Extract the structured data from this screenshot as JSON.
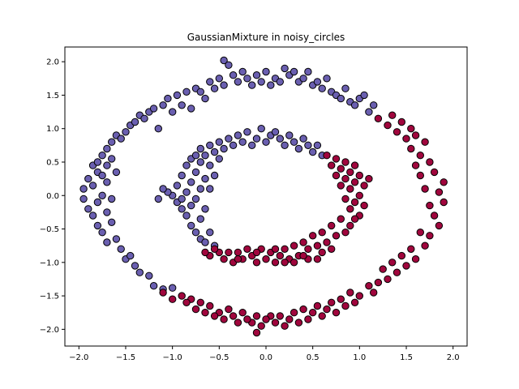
{
  "chart_data": {
    "type": "scatter",
    "title": "GaussianMixture in noisy_circles",
    "xlabel": "",
    "ylabel": "",
    "xlim": [
      -2.15,
      2.15
    ],
    "ylim": [
      -2.25,
      2.22
    ],
    "xticks": [
      -2.0,
      -1.5,
      -1.0,
      -0.5,
      0.0,
      0.5,
      1.0,
      1.5,
      2.0
    ],
    "xtick_labels": [
      "−2.0",
      "−1.5",
      "−1.0",
      "−0.5",
      "0.0",
      "0.5",
      "1.0",
      "1.5",
      "2.0"
    ],
    "yticks": [
      2.0,
      1.5,
      1.0,
      0.5,
      0.0,
      -0.5,
      -1.0,
      -1.5,
      -2.0
    ],
    "ytick_labels": [
      "2.0",
      "1.5",
      "1.0",
      "0.5",
      "0.0",
      "−0.5",
      "−1.0",
      "−1.5",
      "−2.0"
    ],
    "grid": false,
    "series": [
      {
        "color": "#6a5fb0",
        "points": [
          [
            -1.95,
            0.1
          ],
          [
            -1.95,
            -0.05
          ],
          [
            -1.9,
            0.25
          ],
          [
            -1.9,
            -0.2
          ],
          [
            -1.85,
            0.45
          ],
          [
            -1.85,
            0.15
          ],
          [
            -1.85,
            -0.3
          ],
          [
            -1.8,
            0.5
          ],
          [
            -1.8,
            0.35
          ],
          [
            -1.8,
            -0.1
          ],
          [
            -1.8,
            -0.45
          ],
          [
            -1.75,
            0.6
          ],
          [
            -1.75,
            0.3
          ],
          [
            -1.75,
            0.0
          ],
          [
            -1.75,
            -0.55
          ],
          [
            -1.7,
            0.7
          ],
          [
            -1.7,
            0.45
          ],
          [
            -1.7,
            0.2
          ],
          [
            -1.7,
            -0.25
          ],
          [
            -1.7,
            -0.7
          ],
          [
            -1.65,
            0.8
          ],
          [
            -1.65,
            0.55
          ],
          [
            -1.65,
            -0.05
          ],
          [
            -1.65,
            -0.4
          ],
          [
            -1.6,
            0.9
          ],
          [
            -1.6,
            0.35
          ],
          [
            -1.6,
            -0.65
          ],
          [
            -1.55,
            0.85
          ],
          [
            -1.55,
            -0.8
          ],
          [
            -1.5,
            0.95
          ],
          [
            -1.5,
            -0.95
          ],
          [
            -1.45,
            1.05
          ],
          [
            -1.45,
            -0.9
          ],
          [
            -1.4,
            1.1
          ],
          [
            -1.4,
            -1.05
          ],
          [
            -1.35,
            1.2
          ],
          [
            -1.35,
            -1.15
          ],
          [
            -1.3,
            1.15
          ],
          [
            -1.25,
            1.25
          ],
          [
            -1.25,
            -1.2
          ],
          [
            -1.2,
            1.3
          ],
          [
            -1.2,
            -1.35
          ],
          [
            -1.15,
            1.0
          ],
          [
            -1.1,
            1.35
          ],
          [
            -1.1,
            -1.4
          ],
          [
            -1.05,
            1.45
          ],
          [
            -1.0,
            1.25
          ],
          [
            -1.0,
            -1.38
          ],
          [
            -0.95,
            1.5
          ],
          [
            -0.9,
            1.35
          ],
          [
            -0.85,
            1.55
          ],
          [
            -0.8,
            1.3
          ],
          [
            -0.75,
            1.6
          ],
          [
            -0.7,
            1.55
          ],
          [
            -0.65,
            1.45
          ],
          [
            -0.6,
            1.7
          ],
          [
            -0.55,
            1.6
          ],
          [
            -0.5,
            1.75
          ],
          [
            -0.45,
            2.02
          ],
          [
            -0.45,
            1.65
          ],
          [
            -0.4,
            1.95
          ],
          [
            -0.35,
            1.8
          ],
          [
            -0.3,
            1.7
          ],
          [
            -0.25,
            1.85
          ],
          [
            -0.2,
            1.75
          ],
          [
            -0.15,
            1.65
          ],
          [
            -0.1,
            1.8
          ],
          [
            -0.05,
            1.7
          ],
          [
            0.0,
            1.85
          ],
          [
            0.05,
            1.65
          ],
          [
            0.1,
            1.75
          ],
          [
            0.15,
            1.7
          ],
          [
            0.2,
            1.9
          ],
          [
            0.25,
            1.8
          ],
          [
            0.3,
            1.85
          ],
          [
            0.35,
            1.7
          ],
          [
            0.4,
            1.75
          ],
          [
            0.45,
            1.85
          ],
          [
            0.5,
            1.65
          ],
          [
            0.55,
            1.7
          ],
          [
            0.6,
            1.6
          ],
          [
            0.65,
            1.75
          ],
          [
            0.7,
            1.55
          ],
          [
            0.75,
            1.5
          ],
          [
            0.8,
            1.45
          ],
          [
            0.85,
            1.6
          ],
          [
            0.9,
            1.4
          ],
          [
            0.95,
            1.35
          ],
          [
            1.0,
            1.45
          ],
          [
            1.05,
            1.5
          ],
          [
            1.1,
            1.25
          ],
          [
            1.15,
            1.35
          ],
          [
            -1.0,
            0.0
          ],
          [
            -0.95,
            0.15
          ],
          [
            -0.95,
            -0.1
          ],
          [
            -0.9,
            0.3
          ],
          [
            -0.9,
            -0.2
          ],
          [
            -0.85,
            0.45
          ],
          [
            -0.85,
            0.05
          ],
          [
            -0.85,
            -0.3
          ],
          [
            -0.8,
            0.55
          ],
          [
            -0.8,
            0.2
          ],
          [
            -0.8,
            -0.15
          ],
          [
            -0.8,
            -0.45
          ],
          [
            -0.75,
            0.6
          ],
          [
            -0.75,
            0.35
          ],
          [
            -0.75,
            -0.05
          ],
          [
            -0.75,
            -0.55
          ],
          [
            -0.7,
            0.7
          ],
          [
            -0.7,
            0.5
          ],
          [
            -0.7,
            0.1
          ],
          [
            -0.7,
            -0.35
          ],
          [
            -0.7,
            -0.65
          ],
          [
            -0.65,
            0.6
          ],
          [
            -0.65,
            -0.2
          ],
          [
            -0.65,
            -0.7
          ],
          [
            -0.6,
            0.75
          ],
          [
            -0.6,
            0.45
          ],
          [
            -0.6,
            -0.55
          ],
          [
            -0.55,
            0.65
          ],
          [
            -0.55,
            -0.75
          ],
          [
            -0.5,
            0.8
          ],
          [
            -0.5,
            0.55
          ],
          [
            -0.45,
            0.7
          ],
          [
            -0.4,
            0.85
          ],
          [
            -0.35,
            0.75
          ],
          [
            -0.3,
            0.9
          ],
          [
            -0.25,
            0.8
          ],
          [
            -0.2,
            0.95
          ],
          [
            -0.15,
            0.75
          ],
          [
            -0.1,
            0.85
          ],
          [
            -0.05,
            1.0
          ],
          [
            0.0,
            0.8
          ],
          [
            0.05,
            0.9
          ],
          [
            0.1,
            0.95
          ],
          [
            0.15,
            0.85
          ],
          [
            0.2,
            0.75
          ],
          [
            0.25,
            0.9
          ],
          [
            0.3,
            0.8
          ],
          [
            0.35,
            0.7
          ],
          [
            0.4,
            0.85
          ],
          [
            0.45,
            0.75
          ],
          [
            0.5,
            0.65
          ],
          [
            0.55,
            0.75
          ],
          [
            0.6,
            0.6
          ],
          [
            -1.15,
            -0.05
          ],
          [
            -1.05,
            0.05
          ],
          [
            -1.1,
            0.1
          ],
          [
            -0.9,
            -0.05
          ],
          [
            -0.65,
            0.25
          ],
          [
            -0.6,
            0.1
          ],
          [
            -0.55,
            0.3
          ]
        ]
      },
      {
        "color": "#a0063d",
        "points": [
          [
            1.2,
            1.15
          ],
          [
            1.3,
            1.05
          ],
          [
            1.35,
            1.2
          ],
          [
            1.4,
            0.95
          ],
          [
            1.45,
            1.1
          ],
          [
            1.5,
            0.85
          ],
          [
            1.55,
            1.0
          ],
          [
            1.55,
            0.7
          ],
          [
            1.6,
            0.9
          ],
          [
            1.6,
            0.45
          ],
          [
            1.65,
            0.6
          ],
          [
            1.65,
            0.3
          ],
          [
            1.7,
            0.8
          ],
          [
            1.7,
            0.1
          ],
          [
            1.75,
            0.5
          ],
          [
            1.75,
            -0.15
          ],
          [
            1.8,
            0.35
          ],
          [
            1.8,
            -0.3
          ],
          [
            1.85,
            0.05
          ],
          [
            1.85,
            -0.45
          ],
          [
            1.9,
            0.2
          ],
          [
            1.9,
            -0.1
          ],
          [
            1.75,
            -0.6
          ],
          [
            1.7,
            -0.75
          ],
          [
            1.65,
            -0.55
          ],
          [
            1.6,
            -0.95
          ],
          [
            1.55,
            -0.8
          ],
          [
            1.5,
            -1.05
          ],
          [
            1.45,
            -0.9
          ],
          [
            1.4,
            -1.15
          ],
          [
            1.35,
            -1.0
          ],
          [
            1.3,
            -1.25
          ],
          [
            1.25,
            -1.1
          ],
          [
            1.2,
            -1.3
          ],
          [
            1.15,
            -1.45
          ],
          [
            1.1,
            -1.35
          ],
          [
            1.0,
            -1.5
          ],
          [
            0.95,
            -1.6
          ],
          [
            0.9,
            -1.45
          ],
          [
            0.85,
            -1.65
          ],
          [
            0.8,
            -1.55
          ],
          [
            0.75,
            -1.75
          ],
          [
            0.7,
            -1.6
          ],
          [
            0.65,
            -1.7
          ],
          [
            0.6,
            -1.8
          ],
          [
            0.55,
            -1.65
          ],
          [
            0.5,
            -1.75
          ],
          [
            0.45,
            -1.85
          ],
          [
            0.4,
            -1.7
          ],
          [
            0.35,
            -1.9
          ],
          [
            0.3,
            -1.75
          ],
          [
            0.25,
            -1.85
          ],
          [
            0.2,
            -1.95
          ],
          [
            0.15,
            -1.8
          ],
          [
            0.1,
            -1.9
          ],
          [
            0.05,
            -1.8
          ],
          [
            0.0,
            -1.85
          ],
          [
            -0.05,
            -1.95
          ],
          [
            -0.1,
            -2.05
          ],
          [
            -0.1,
            -1.8
          ],
          [
            -0.15,
            -1.9
          ],
          [
            -0.2,
            -1.85
          ],
          [
            -0.25,
            -1.75
          ],
          [
            -0.3,
            -1.9
          ],
          [
            -0.35,
            -1.8
          ],
          [
            -0.4,
            -1.7
          ],
          [
            -0.45,
            -1.85
          ],
          [
            -0.5,
            -1.75
          ],
          [
            -0.55,
            -1.8
          ],
          [
            -0.6,
            -1.65
          ],
          [
            -0.65,
            -1.75
          ],
          [
            -0.7,
            -1.6
          ],
          [
            -0.75,
            -1.7
          ],
          [
            -0.8,
            -1.55
          ],
          [
            -0.85,
            -1.6
          ],
          [
            -0.9,
            -1.5
          ],
          [
            -1.0,
            -1.55
          ],
          [
            -1.1,
            -1.45
          ],
          [
            0.65,
            0.6
          ],
          [
            0.7,
            0.45
          ],
          [
            0.75,
            0.55
          ],
          [
            0.75,
            0.3
          ],
          [
            0.8,
            0.4
          ],
          [
            0.8,
            0.15
          ],
          [
            0.85,
            0.5
          ],
          [
            0.85,
            0.25
          ],
          [
            0.85,
            -0.05
          ],
          [
            0.9,
            0.35
          ],
          [
            0.9,
            0.1
          ],
          [
            0.9,
            -0.2
          ],
          [
            0.95,
            0.45
          ],
          [
            0.95,
            0.2
          ],
          [
            0.95,
            -0.1
          ],
          [
            1.0,
            0.3
          ],
          [
            1.0,
            0.0
          ],
          [
            1.0,
            -0.3
          ],
          [
            1.05,
            0.15
          ],
          [
            1.05,
            -0.15
          ],
          [
            1.1,
            0.25
          ],
          [
            0.95,
            -0.35
          ],
          [
            0.9,
            -0.45
          ],
          [
            0.85,
            -0.55
          ],
          [
            0.8,
            -0.35
          ],
          [
            0.75,
            -0.6
          ],
          [
            0.7,
            -0.45
          ],
          [
            0.65,
            -0.7
          ],
          [
            0.6,
            -0.55
          ],
          [
            0.55,
            -0.75
          ],
          [
            0.5,
            -0.6
          ],
          [
            0.45,
            -0.8
          ],
          [
            0.4,
            -0.7
          ],
          [
            0.35,
            -0.9
          ],
          [
            0.3,
            -0.75
          ],
          [
            0.25,
            -0.95
          ],
          [
            0.2,
            -0.8
          ],
          [
            0.15,
            -0.9
          ],
          [
            0.1,
            -1.0
          ],
          [
            0.05,
            -0.85
          ],
          [
            0.0,
            -0.95
          ],
          [
            -0.05,
            -0.8
          ],
          [
            -0.1,
            -1.0
          ],
          [
            -0.15,
            -0.9
          ],
          [
            -0.2,
            -0.8
          ],
          [
            -0.25,
            -0.95
          ],
          [
            -0.3,
            -0.85
          ],
          [
            -0.35,
            -1.0
          ],
          [
            -0.4,
            -0.85
          ],
          [
            -0.45,
            -0.95
          ],
          [
            -0.5,
            -0.85
          ],
          [
            -0.55,
            -0.8
          ],
          [
            -0.6,
            -0.9
          ],
          [
            -0.65,
            -0.85
          ],
          [
            0.55,
            -0.95
          ],
          [
            0.6,
            -0.85
          ],
          [
            0.7,
            -0.8
          ],
          [
            0.45,
            -0.95
          ],
          [
            0.3,
            -1.0
          ],
          [
            0.1,
            -0.8
          ],
          [
            -0.3,
            -0.95
          ],
          [
            -0.1,
            -0.85
          ],
          [
            0.2,
            -1.0
          ],
          [
            0.4,
            -0.9
          ]
        ]
      }
    ]
  }
}
